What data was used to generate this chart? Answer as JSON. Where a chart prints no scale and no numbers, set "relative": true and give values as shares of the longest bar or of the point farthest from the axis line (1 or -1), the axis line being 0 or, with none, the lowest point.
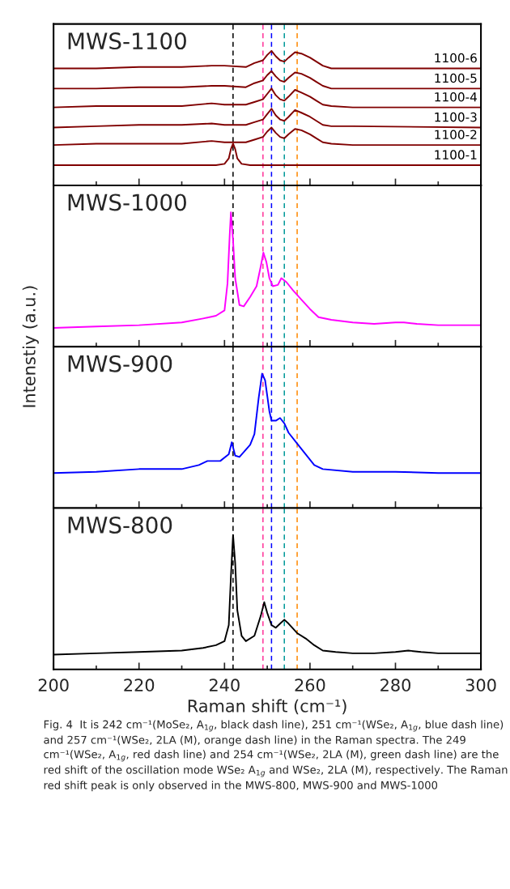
{
  "chart_data": [
    {
      "type": "line",
      "relative": true,
      "title": "MWS-1100",
      "xlim": [
        200,
        300
      ],
      "xticks": [
        200,
        {
          "value": 210,
          "label": null
        },
        220,
        {
          "value": 230,
          "label": null
        },
        240,
        {
          "value": 250,
          "label": null
        },
        260,
        {
          "value": 270,
          "label": null
        },
        280,
        {
          "value": 290,
          "label": null
        },
        300
      ],
      "tick_labels": false,
      "line_style": "solid",
      "ref_lines": [
        {
          "axis": "x",
          "value": 242,
          "color": "#000000",
          "line_style": "dashed"
        },
        {
          "axis": "x",
          "value": 249,
          "color": "#ff3399",
          "line_style": "dashed"
        },
        {
          "axis": "x",
          "value": 251,
          "color": "#0000ff",
          "line_style": "dashed"
        },
        {
          "axis": "x",
          "value": 254,
          "color": "#009999",
          "line_style": "dashed"
        },
        {
          "axis": "x",
          "value": 257,
          "color": "#ff8800",
          "line_style": "dashed"
        }
      ],
      "series": [
        {
          "name": "1100-6",
          "color": "#800000",
          "x": [
            200,
            210,
            220,
            230,
            237,
            240,
            245,
            247,
            249,
            250,
            251,
            252,
            253,
            254,
            255,
            256.5,
            258,
            260,
            261.5,
            263,
            265,
            270,
            300
          ],
          "values": [
            0.87,
            0.87,
            0.88,
            0.88,
            0.89,
            0.89,
            0.88,
            0.91,
            0.93,
            0.97,
            1.0,
            0.96,
            0.93,
            0.92,
            0.95,
            0.99,
            0.98,
            0.95,
            0.92,
            0.89,
            0.87,
            0.87,
            0.87
          ]
        },
        {
          "name": "1100-5",
          "color": "#800000",
          "x": [
            200,
            210,
            220,
            230,
            237,
            240,
            245,
            247,
            249,
            250,
            251,
            252,
            253,
            254,
            255,
            256.5,
            258,
            260,
            261.5,
            263,
            265,
            270,
            300
          ],
          "values": [
            0.72,
            0.72,
            0.73,
            0.73,
            0.74,
            0.74,
            0.73,
            0.76,
            0.78,
            0.82,
            0.85,
            0.81,
            0.78,
            0.77,
            0.8,
            0.84,
            0.83,
            0.8,
            0.77,
            0.74,
            0.72,
            0.72,
            0.72
          ]
        },
        {
          "name": "1100-4",
          "color": "#800000",
          "x": [
            200,
            210,
            220,
            230,
            237,
            240,
            245,
            247,
            249,
            250,
            251,
            252,
            253,
            254,
            255,
            256.5,
            258,
            260,
            261.5,
            263,
            265,
            270,
            300
          ],
          "values": [
            0.58,
            0.59,
            0.59,
            0.59,
            0.61,
            0.6,
            0.6,
            0.62,
            0.64,
            0.68,
            0.72,
            0.67,
            0.64,
            0.63,
            0.66,
            0.71,
            0.69,
            0.66,
            0.63,
            0.6,
            0.59,
            0.58,
            0.58
          ]
        },
        {
          "name": "1100-3",
          "color": "#800000",
          "x": [
            200,
            210,
            220,
            230,
            237,
            240,
            245,
            247,
            249,
            250,
            251,
            252,
            253,
            254,
            255,
            256.5,
            258,
            260,
            261.5,
            263,
            265,
            270,
            300
          ],
          "values": [
            0.43,
            0.44,
            0.45,
            0.45,
            0.46,
            0.45,
            0.45,
            0.47,
            0.49,
            0.53,
            0.57,
            0.52,
            0.49,
            0.48,
            0.51,
            0.56,
            0.54,
            0.51,
            0.48,
            0.45,
            0.44,
            0.44,
            0.43
          ]
        },
        {
          "name": "1100-2",
          "color": "#800000",
          "x": [
            200,
            210,
            220,
            230,
            237,
            240,
            245,
            247,
            249,
            250,
            251,
            252,
            253,
            254,
            255,
            256.5,
            258,
            260,
            261.5,
            263,
            265,
            270,
            300
          ],
          "values": [
            0.3,
            0.31,
            0.31,
            0.31,
            0.33,
            0.32,
            0.32,
            0.34,
            0.36,
            0.4,
            0.43,
            0.39,
            0.36,
            0.35,
            0.38,
            0.42,
            0.41,
            0.38,
            0.35,
            0.32,
            0.31,
            0.3,
            0.3
          ]
        },
        {
          "name": "1100-1",
          "color": "#800000",
          "x": [
            200,
            230,
            238,
            240,
            241,
            241.5,
            242,
            242.5,
            243,
            244,
            246,
            260,
            300
          ],
          "values": [
            0.15,
            0.15,
            0.15,
            0.16,
            0.2,
            0.27,
            0.31,
            0.27,
            0.2,
            0.16,
            0.15,
            0.15,
            0.15
          ]
        }
      ]
    },
    {
      "type": "line",
      "relative": true,
      "title": "MWS-1000",
      "xlim": [
        200,
        300
      ],
      "xticks": [
        200,
        {
          "value": 210,
          "label": null
        },
        220,
        {
          "value": 230,
          "label": null
        },
        240,
        {
          "value": 250,
          "label": null
        },
        260,
        {
          "value": 270,
          "label": null
        },
        280,
        {
          "value": 290,
          "label": null
        },
        300
      ],
      "tick_labels": false,
      "line_style": "solid",
      "ref_lines": [
        {
          "axis": "x",
          "value": 242,
          "color": "#000000",
          "line_style": "dashed"
        },
        {
          "axis": "x",
          "value": 249,
          "color": "#ff3399",
          "line_style": "dashed"
        },
        {
          "axis": "x",
          "value": 251,
          "color": "#0000ff",
          "line_style": "dashed"
        },
        {
          "axis": "x",
          "value": 254,
          "color": "#009999",
          "line_style": "dashed"
        },
        {
          "axis": "x",
          "value": 257,
          "color": "#ff8800",
          "line_style": "dashed"
        }
      ],
      "series": [
        {
          "color": "#ff00ff",
          "x": [
            200,
            210,
            220,
            230,
            235,
            238,
            240,
            240.7,
            241.2,
            241.5,
            242,
            242.5,
            243.5,
            244.5,
            246,
            247.5,
            248.5,
            249.1,
            249.8,
            250.5,
            251.3,
            252.5,
            253.3,
            254.5,
            256,
            258,
            260,
            262,
            265,
            270,
            275,
            280,
            282,
            285,
            290,
            300
          ],
          "values": [
            0.14,
            0.15,
            0.16,
            0.18,
            0.21,
            0.23,
            0.27,
            0.47,
            0.82,
            1.0,
            0.79,
            0.51,
            0.31,
            0.3,
            0.37,
            0.45,
            0.6,
            0.7,
            0.63,
            0.51,
            0.45,
            0.46,
            0.51,
            0.48,
            0.42,
            0.35,
            0.28,
            0.22,
            0.2,
            0.18,
            0.17,
            0.18,
            0.18,
            0.17,
            0.16,
            0.16
          ]
        }
      ]
    },
    {
      "type": "line",
      "relative": true,
      "title": "MWS-900",
      "xlim": [
        200,
        300
      ],
      "xticks": [
        200,
        {
          "value": 210,
          "label": null
        },
        220,
        {
          "value": 230,
          "label": null
        },
        240,
        {
          "value": 250,
          "label": null
        },
        260,
        {
          "value": 270,
          "label": null
        },
        280,
        {
          "value": 290,
          "label": null
        },
        300
      ],
      "tick_labels": false,
      "line_style": "solid",
      "ref_lines": [
        {
          "axis": "x",
          "value": 242,
          "color": "#000000",
          "line_style": "dashed"
        },
        {
          "axis": "x",
          "value": 249,
          "color": "#ff3399",
          "line_style": "dashed"
        },
        {
          "axis": "x",
          "value": 251,
          "color": "#0000ff",
          "line_style": "dashed"
        },
        {
          "axis": "x",
          "value": 254,
          "color": "#009999",
          "line_style": "dashed"
        },
        {
          "axis": "x",
          "value": 257,
          "color": "#ff8800",
          "line_style": "dashed"
        }
      ],
      "series": [
        {
          "color": "#0000ff",
          "x": [
            200,
            210,
            220,
            230,
            234,
            236,
            239,
            241,
            241.7,
            242.5,
            243.5,
            246,
            247,
            248,
            248.8,
            249.5,
            250.5,
            251,
            252,
            253,
            254,
            255,
            257,
            259,
            261,
            263,
            270,
            280,
            290,
            300
          ],
          "values": [
            0.26,
            0.27,
            0.29,
            0.29,
            0.32,
            0.35,
            0.35,
            0.4,
            0.49,
            0.39,
            0.38,
            0.47,
            0.55,
            0.82,
            1.0,
            0.95,
            0.72,
            0.65,
            0.65,
            0.67,
            0.63,
            0.56,
            0.48,
            0.4,
            0.32,
            0.29,
            0.27,
            0.27,
            0.26,
            0.26
          ]
        }
      ]
    },
    {
      "type": "line",
      "relative": true,
      "title": "MWS-800",
      "xlabel": "Raman shift (cm⁻¹)",
      "ylabel": "Intenstiy (a.u.)",
      "xlim": [
        200,
        300
      ],
      "xticks": [
        200,
        {
          "value": 210,
          "label": null
        },
        220,
        {
          "value": 230,
          "label": null
        },
        240,
        {
          "value": 250,
          "label": null
        },
        260,
        {
          "value": 270,
          "label": null
        },
        280,
        {
          "value": 290,
          "label": null
        },
        300
      ],
      "tick_labels": "x",
      "line_style": "solid",
      "ref_lines": [
        {
          "axis": "x",
          "value": 242,
          "color": "#000000",
          "line_style": "dashed"
        },
        {
          "axis": "x",
          "value": 249,
          "color": "#ff3399",
          "line_style": "dashed"
        },
        {
          "axis": "x",
          "value": 251,
          "color": "#0000ff",
          "line_style": "dashed"
        },
        {
          "axis": "x",
          "value": 254,
          "color": "#009999",
          "line_style": "dashed"
        },
        {
          "axis": "x",
          "value": 257,
          "color": "#ff8800",
          "line_style": "dashed"
        }
      ],
      "annotations": [
        "Fig. 4  It is 242 cm⁻¹(MoSe₂, A$_{1g}$, black dash line), 251 cm⁻¹(WSe₂, A$_{1g}$, blue dash line) and 257 cm⁻¹(WSe₂, 2LA (M), orange dash line) in the Raman spectra. The 249 cm⁻¹(WSe₂, A$_{1g}$, red dash line) and 254 cm⁻¹(WSe₂, 2LA (M), green dash line) are the red shift of the oscillation mode WSe₂ A$_{1g}$ and WSe₂, 2LA (M), respectively. The Raman red shift peak is only observed in the MWS-800, MWS-900 and MWS-1000"
      ],
      "series": [
        {
          "color": "#000000",
          "x": [
            200,
            210,
            220,
            230,
            235,
            238,
            240,
            241,
            241.5,
            242,
            242.5,
            243,
            244,
            245,
            247,
            248.5,
            249.3,
            250,
            251,
            252,
            253,
            254,
            255,
            257,
            259,
            261,
            263,
            266,
            270,
            275,
            280,
            283,
            286,
            290,
            300
          ],
          "values": [
            0.11,
            0.12,
            0.13,
            0.14,
            0.16,
            0.18,
            0.21,
            0.33,
            0.69,
            1.0,
            0.79,
            0.44,
            0.25,
            0.21,
            0.25,
            0.4,
            0.5,
            0.42,
            0.33,
            0.31,
            0.34,
            0.37,
            0.34,
            0.27,
            0.23,
            0.18,
            0.14,
            0.13,
            0.12,
            0.12,
            0.13,
            0.14,
            0.13,
            0.12,
            0.12
          ]
        }
      ]
    }
  ]
}
